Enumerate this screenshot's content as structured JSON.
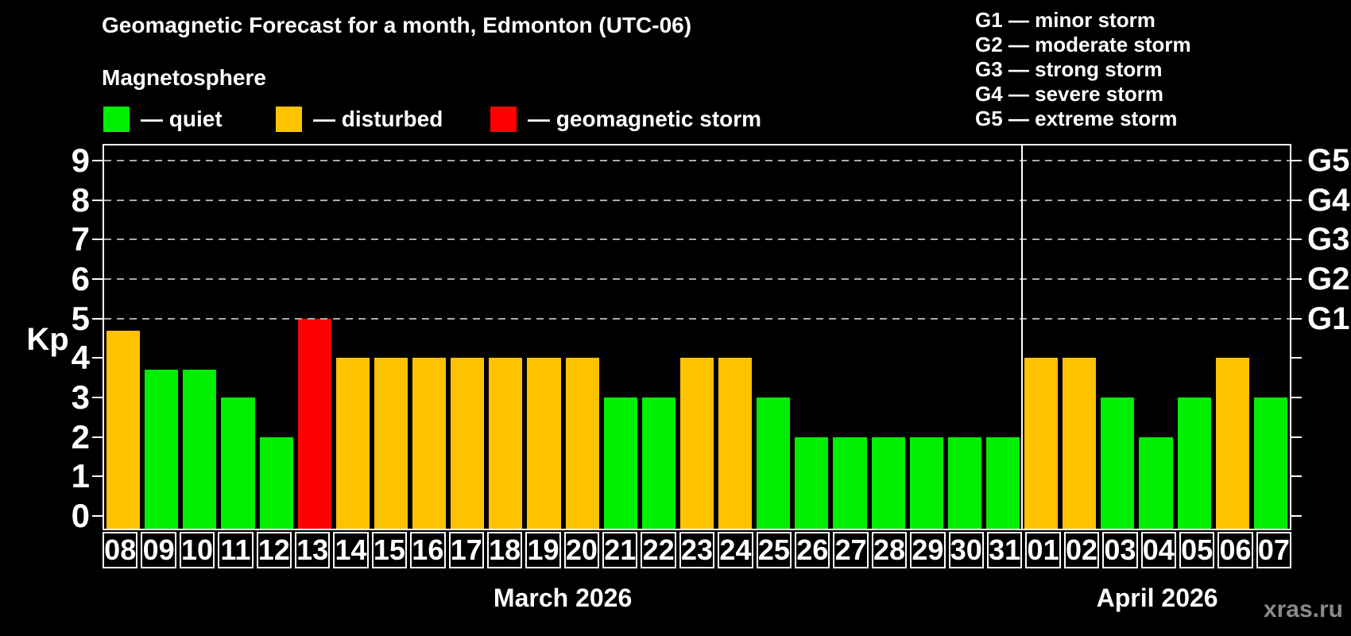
{
  "header": {
    "title": "Geomagnetic Forecast for a month, Edmonton (UTC-06)",
    "subtitle": "Magnetosphere",
    "legend": [
      {
        "key": "quiet",
        "label": "— quiet",
        "color": "#00ee00"
      },
      {
        "key": "disturbed",
        "label": "— disturbed",
        "color": "#ffc200"
      },
      {
        "key": "storm",
        "label": "— geomagnetic storm",
        "color": "#ff0000"
      }
    ],
    "gscale_legend": [
      "G1 — minor storm",
      "G2 — moderate storm",
      "G3 — strong storm",
      "G4 — severe storm",
      "G5 — extreme storm"
    ]
  },
  "watermark": "xras.ru",
  "chart_data": {
    "type": "bar",
    "title": "Geomagnetic Forecast for a month, Edmonton (UTC-06)",
    "ylabel": "Kp",
    "ylim": [
      -0.32,
      9.38
    ],
    "y_ticks": [
      0,
      1,
      2,
      3,
      4,
      5,
      6,
      7,
      8,
      9
    ],
    "gridlines_at": [
      5,
      6,
      7,
      8,
      9
    ],
    "grid": "dashed horizontal lines at Kp 5 to 9",
    "legend_position": "top",
    "right_axis": [
      {
        "kp": 5,
        "label": "G1"
      },
      {
        "kp": 6,
        "label": "G2"
      },
      {
        "kp": 7,
        "label": "G3"
      },
      {
        "kp": 8,
        "label": "G4"
      },
      {
        "kp": 9,
        "label": "G5"
      }
    ],
    "months": [
      {
        "label": "March 2026",
        "days": 24
      },
      {
        "label": "April 2026",
        "days": 7
      }
    ],
    "categories": [
      "08",
      "09",
      "10",
      "11",
      "12",
      "13",
      "14",
      "15",
      "16",
      "17",
      "18",
      "19",
      "20",
      "21",
      "22",
      "23",
      "24",
      "25",
      "26",
      "27",
      "28",
      "29",
      "30",
      "31",
      "01",
      "02",
      "03",
      "04",
      "05",
      "06",
      "07"
    ],
    "values": [
      4.7,
      3.7,
      3.7,
      3,
      2,
      5,
      4,
      4,
      4,
      4,
      4,
      4,
      4,
      3,
      3,
      4,
      4,
      3,
      2,
      2,
      2,
      2,
      2,
      2,
      4,
      4,
      3,
      2,
      3,
      4,
      3
    ],
    "statuses": [
      "disturbed",
      "quiet",
      "quiet",
      "quiet",
      "quiet",
      "storm",
      "disturbed",
      "disturbed",
      "disturbed",
      "disturbed",
      "disturbed",
      "disturbed",
      "disturbed",
      "quiet",
      "quiet",
      "disturbed",
      "disturbed",
      "quiet",
      "quiet",
      "quiet",
      "quiet",
      "quiet",
      "quiet",
      "quiet",
      "disturbed",
      "disturbed",
      "quiet",
      "quiet",
      "quiet",
      "disturbed",
      "quiet"
    ],
    "status_colors": {
      "quiet": "#00ee00",
      "disturbed": "#ffc200",
      "storm": "#ff0000"
    }
  }
}
